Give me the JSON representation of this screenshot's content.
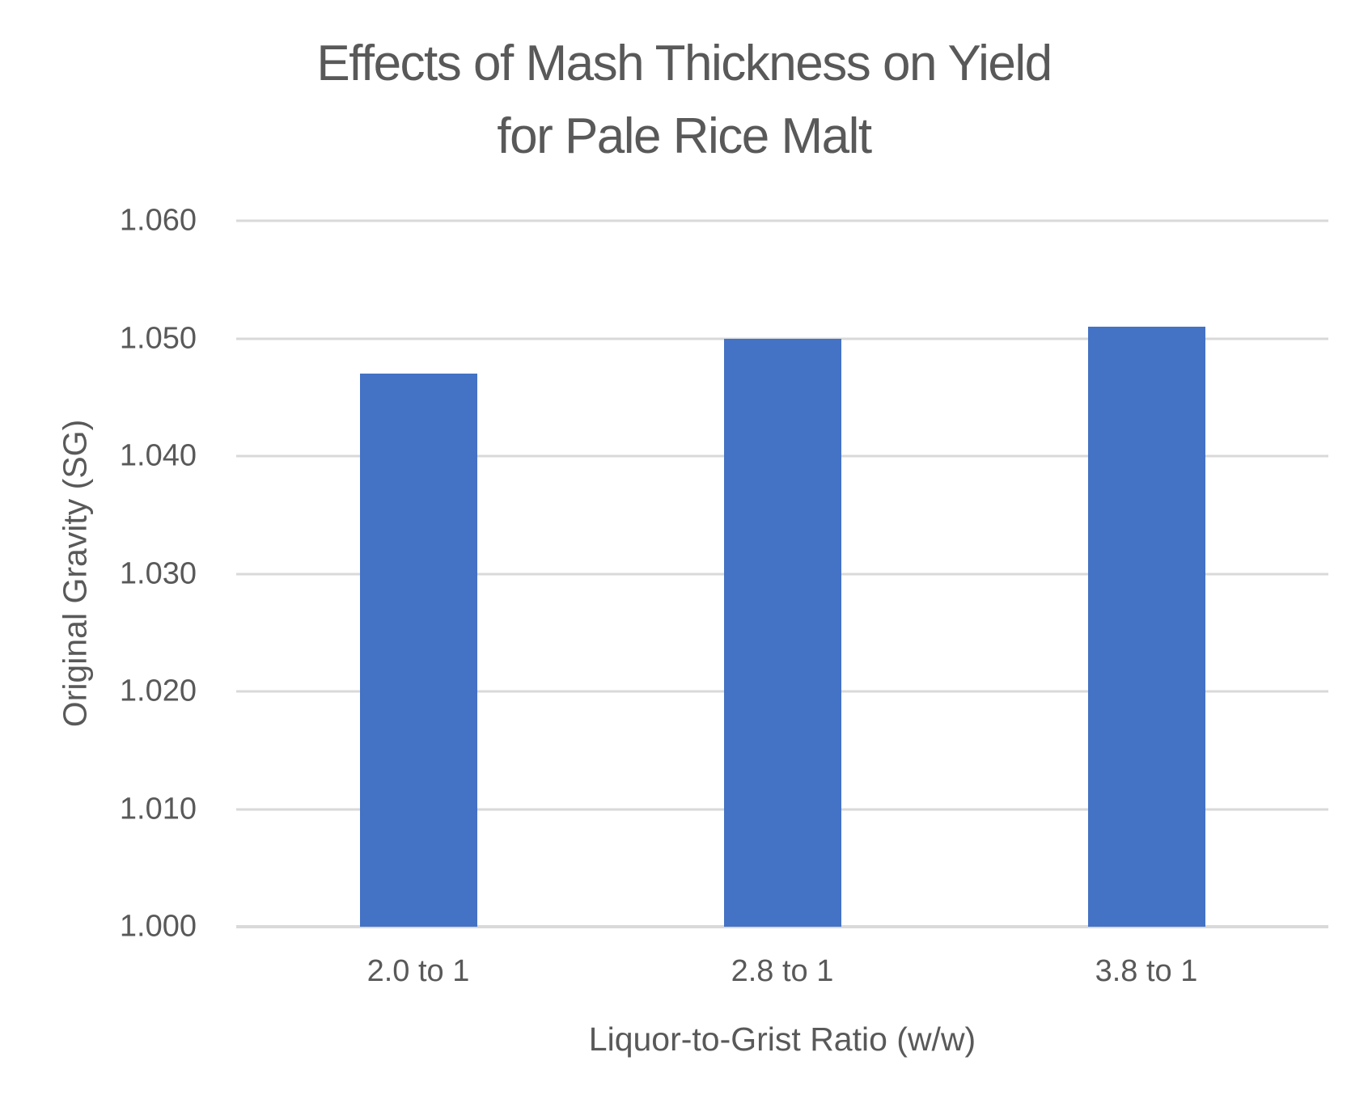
{
  "chart_data": {
    "type": "bar",
    "title": "Effects of Mash Thickness on Yield for Pale Rice Malt",
    "title_line1": "Effects of Mash Thickness on Yield",
    "title_line2": "for Pale Rice Malt",
    "categories": [
      "2.0 to 1",
      "2.8 to 1",
      "3.8 to 1"
    ],
    "values": [
      1.047,
      1.05,
      1.051
    ],
    "xlabel": "Liquor-to-Grist Ratio (w/w)",
    "ylabel": "Original Gravity (SG)",
    "ylim": [
      1.0,
      1.06
    ],
    "ytick_step": 0.01,
    "ytick_decimals": 3,
    "ytick_labels": [
      "1.000",
      "1.010",
      "1.020",
      "1.030",
      "1.040",
      "1.050",
      "1.060"
    ],
    "grid": "horizontal",
    "legend": "none",
    "bar_color": "#4472C4",
    "gridline_color": "#D9D9D9",
    "axis_line_color": "#D9D9D9",
    "text_color": "#595959"
  }
}
